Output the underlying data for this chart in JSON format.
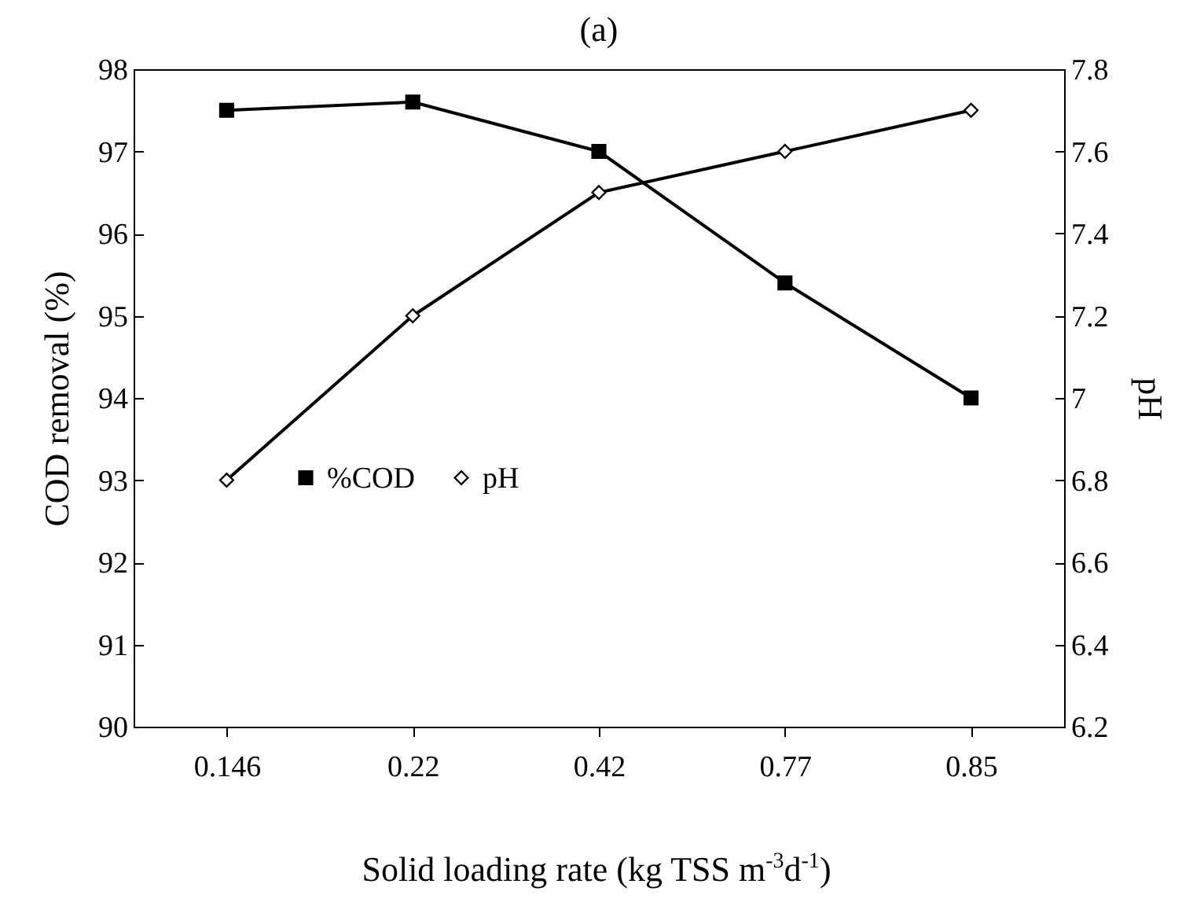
{
  "chart_data": {
    "type": "line",
    "title": "(a)",
    "xlabel": "Solid loading rate (kg TSS m$^{-3}$d$^{-1}$)",
    "ylabel": "COD removal (%)",
    "y2label": "pH",
    "categories": [
      "0.146",
      "0.22",
      "0.42",
      "0.77",
      "0.85"
    ],
    "series": [
      {
        "name": "%COD",
        "color": "#000000",
        "marker": "square",
        "values": [
          97.5,
          97.6,
          97.0,
          95.4,
          94.0
        ]
      },
      {
        "name": "pH",
        "color": "#000000",
        "marker": "diamond",
        "axis": "y2",
        "values": [
          6.8,
          7.2,
          7.5,
          7.6,
          7.7
        ]
      }
    ],
    "ylim": [
      90,
      98
    ],
    "yticks": [
      90,
      91,
      92,
      93,
      94,
      95,
      96,
      97,
      98
    ],
    "y2lim": [
      6.2,
      7.8
    ],
    "y2ticks": [
      6.2,
      6.4,
      6.6,
      6.8,
      7,
      7.2,
      7.4,
      7.6,
      7.8
    ],
    "legend": "center",
    "grid": false,
    "line_style": "solid"
  }
}
